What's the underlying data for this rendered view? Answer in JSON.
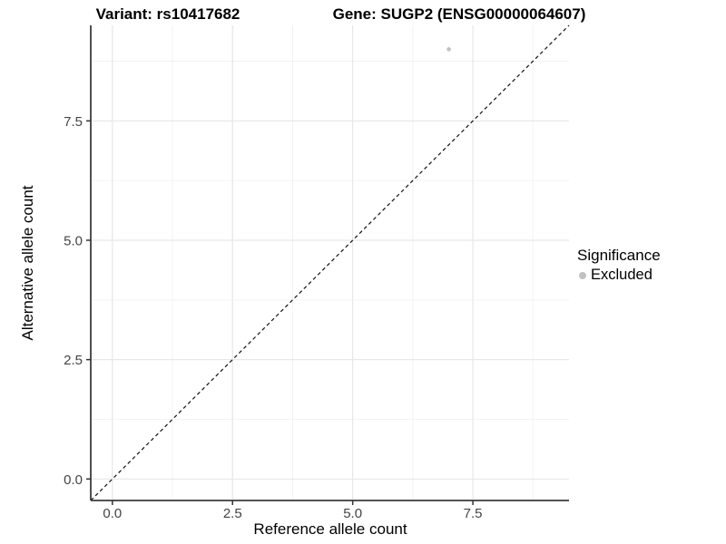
{
  "chart_data": {
    "type": "scatter",
    "title_left": "Variant: rs10417682",
    "title_right": "Gene: SUGP2 (ENSG00000064607)",
    "xlabel": "Reference allele count",
    "ylabel": "Alternative allele count",
    "xlim": [
      -0.45,
      9.5
    ],
    "ylim": [
      -0.45,
      9.5
    ],
    "x_ticks": [
      0,
      2.5,
      5,
      7.5
    ],
    "y_ticks": [
      0,
      2.5,
      5,
      7.5
    ],
    "x_tick_labels": [
      "0.0",
      "2.5",
      "5.0",
      "7.5"
    ],
    "y_tick_labels": [
      "0.0",
      "2.5",
      "5.0",
      "7.5"
    ],
    "x_minor_ticks": [
      1.25,
      3.75,
      6.25,
      8.75
    ],
    "y_minor_ticks": [
      1.25,
      3.75,
      6.25,
      8.75
    ],
    "grid": true,
    "series": [
      {
        "name": "Excluded",
        "marker": "circle",
        "color": "#c1c1c1",
        "points": [
          {
            "x": 7,
            "y": 9
          }
        ]
      }
    ],
    "reference_line": {
      "type": "identity",
      "slope": 1,
      "intercept": 0,
      "style": "dashed",
      "color": "#111111"
    },
    "legend": {
      "title": "Significance",
      "position": "right",
      "items": [
        {
          "label": "Excluded",
          "color": "#c1c1c1",
          "marker": "circle"
        }
      ]
    },
    "style": {
      "axis_line_color": "#3c3c3c",
      "tick_color": "#333333",
      "tick_label_color": "#444444",
      "major_grid_color": "#e7e7e7",
      "minor_grid_color": "#f3f3f3",
      "background": "#ffffff"
    }
  }
}
